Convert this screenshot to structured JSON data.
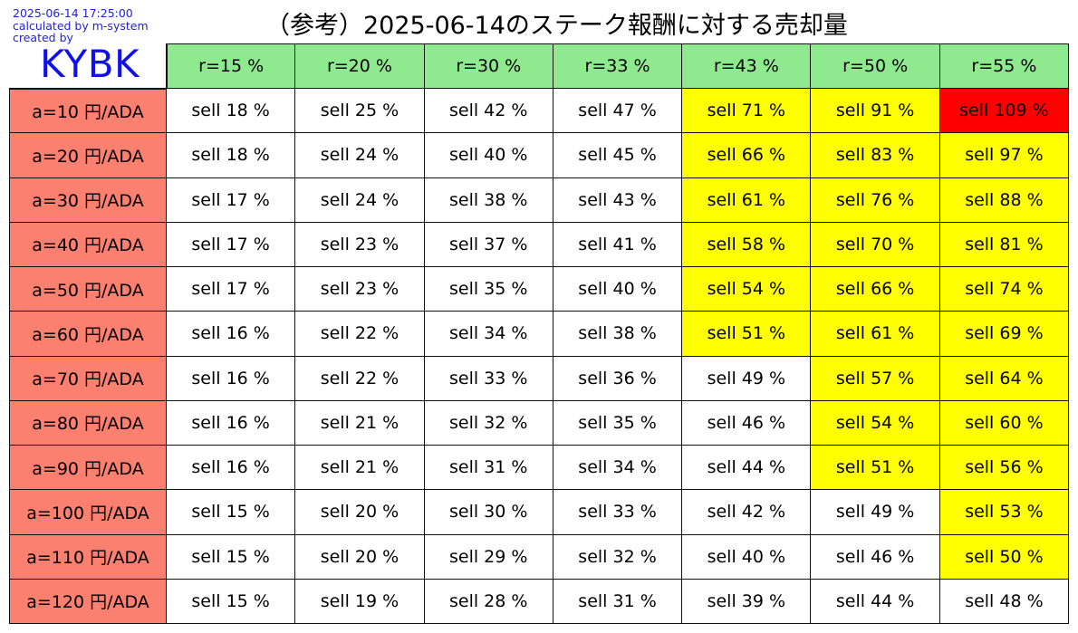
{
  "meta": {
    "timestamp": "2025-06-14 17:25:00",
    "calculated_by": "calculated by m-system",
    "created_by": "created by",
    "brand": "KYBK"
  },
  "title": "（参考）2025-06-14のステーク報酬に対する売却量",
  "colors": {
    "header": "#8fe98f",
    "row_header": "#fb8070",
    "yellow": "#ffff00",
    "red": "#ff0000",
    "white": "#ffffff"
  },
  "chart_data": {
    "type": "table",
    "title": "（参考）2025-06-14のステーク報酬に対する売却量",
    "columns": [
      "r=15 %",
      "r=20 %",
      "r=30 %",
      "r=33 %",
      "r=43 %",
      "r=50 %",
      "r=55 %"
    ],
    "rows": [
      "a=10 円/ADA",
      "a=20 円/ADA",
      "a=30 円/ADA",
      "a=40 円/ADA",
      "a=50 円/ADA",
      "a=60 円/ADA",
      "a=70 円/ADA",
      "a=80 円/ADA",
      "a=90 円/ADA",
      "a=100 円/ADA",
      "a=110 円/ADA",
      "a=120 円/ADA"
    ],
    "values": [
      [
        18,
        25,
        42,
        47,
        71,
        91,
        109
      ],
      [
        18,
        24,
        40,
        45,
        66,
        83,
        97
      ],
      [
        17,
        24,
        38,
        43,
        61,
        76,
        88
      ],
      [
        17,
        23,
        37,
        41,
        58,
        70,
        81
      ],
      [
        17,
        23,
        35,
        40,
        54,
        66,
        74
      ],
      [
        16,
        22,
        34,
        38,
        51,
        61,
        69
      ],
      [
        16,
        22,
        33,
        36,
        49,
        57,
        64
      ],
      [
        16,
        21,
        32,
        35,
        46,
        54,
        60
      ],
      [
        16,
        21,
        31,
        34,
        44,
        51,
        56
      ],
      [
        15,
        20,
        30,
        33,
        42,
        49,
        53
      ],
      [
        15,
        20,
        29,
        32,
        40,
        46,
        50
      ],
      [
        15,
        19,
        28,
        31,
        39,
        44,
        48
      ]
    ],
    "value_prefix": "sell ",
    "value_suffix": " %",
    "highlight": [
      [
        "white",
        "white",
        "white",
        "white",
        "yellow",
        "yellow",
        "red"
      ],
      [
        "white",
        "white",
        "white",
        "white",
        "yellow",
        "yellow",
        "yellow"
      ],
      [
        "white",
        "white",
        "white",
        "white",
        "yellow",
        "yellow",
        "yellow"
      ],
      [
        "white",
        "white",
        "white",
        "white",
        "yellow",
        "yellow",
        "yellow"
      ],
      [
        "white",
        "white",
        "white",
        "white",
        "yellow",
        "yellow",
        "yellow"
      ],
      [
        "white",
        "white",
        "white",
        "white",
        "yellow",
        "yellow",
        "yellow"
      ],
      [
        "white",
        "white",
        "white",
        "white",
        "white",
        "yellow",
        "yellow"
      ],
      [
        "white",
        "white",
        "white",
        "white",
        "white",
        "yellow",
        "yellow"
      ],
      [
        "white",
        "white",
        "white",
        "white",
        "white",
        "yellow",
        "yellow"
      ],
      [
        "white",
        "white",
        "white",
        "white",
        "white",
        "white",
        "yellow"
      ],
      [
        "white",
        "white",
        "white",
        "white",
        "white",
        "white",
        "yellow"
      ],
      [
        "white",
        "white",
        "white",
        "white",
        "white",
        "white",
        "white"
      ]
    ]
  }
}
